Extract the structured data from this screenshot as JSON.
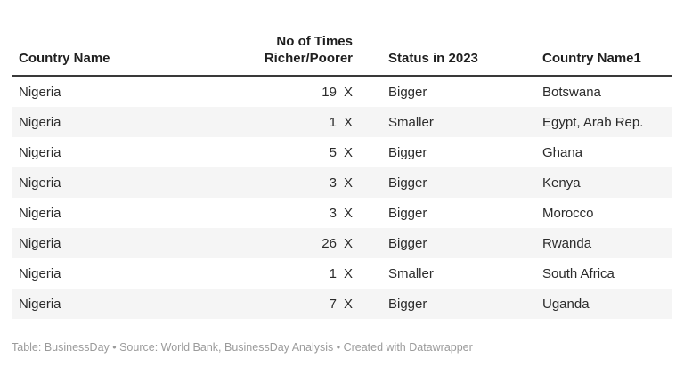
{
  "table": {
    "columns": [
      {
        "label": "Country Name"
      },
      {
        "label_line1": "No of Times",
        "label_line2": "Richer/Poorer"
      },
      {
        "label": "Status in 2023"
      },
      {
        "label": "Country Name1"
      }
    ],
    "rows": [
      {
        "country_name": "Nigeria",
        "times": "19",
        "unit": "X",
        "status": "Bigger",
        "country_name1": "Botswana"
      },
      {
        "country_name": "Nigeria",
        "times": "1",
        "unit": "X",
        "status": "Smaller",
        "country_name1": "Egypt, Arab Rep."
      },
      {
        "country_name": "Nigeria",
        "times": "5",
        "unit": "X",
        "status": "Bigger",
        "country_name1": "Ghana"
      },
      {
        "country_name": "Nigeria",
        "times": "3",
        "unit": "X",
        "status": "Bigger",
        "country_name1": "Kenya"
      },
      {
        "country_name": "Nigeria",
        "times": "3",
        "unit": "X",
        "status": "Bigger",
        "country_name1": "Morocco"
      },
      {
        "country_name": "Nigeria",
        "times": "26",
        "unit": "X",
        "status": "Bigger",
        "country_name1": "Rwanda"
      },
      {
        "country_name": "Nigeria",
        "times": "1",
        "unit": "X",
        "status": "Smaller",
        "country_name1": "South Africa"
      },
      {
        "country_name": "Nigeria",
        "times": "7",
        "unit": "X",
        "status": "Bigger",
        "country_name1": "Uganda"
      }
    ]
  },
  "footer": {
    "text": "Table: BusinessDay • Source: World Bank, BusinessDay Analysis • Created with Datawrapper"
  },
  "colors": {
    "header_rule": "#393939",
    "alt_row_background": "#f5f5f5",
    "body_text": "#2b2b2b",
    "header_text": "#1f1f1f",
    "footer_text": "#9b9b9b"
  },
  "chart_data": {
    "type": "table",
    "title": "",
    "columns": [
      "Country Name",
      "No of Times Richer/Poorer",
      "Status in 2023",
      "Country Name1"
    ],
    "rows": [
      [
        "Nigeria",
        "19 X",
        "Bigger",
        "Botswana"
      ],
      [
        "Nigeria",
        "1 X",
        "Smaller",
        "Egypt, Arab Rep."
      ],
      [
        "Nigeria",
        "5 X",
        "Bigger",
        "Ghana"
      ],
      [
        "Nigeria",
        "3 X",
        "Bigger",
        "Kenya"
      ],
      [
        "Nigeria",
        "3 X",
        "Bigger",
        "Morocco"
      ],
      [
        "Nigeria",
        "26 X",
        "Bigger",
        "Rwanda"
      ],
      [
        "Nigeria",
        "1 X",
        "Smaller",
        "South Africa"
      ],
      [
        "Nigeria",
        "7 X",
        "Bigger",
        "Uganda"
      ]
    ],
    "layout": {
      "striped_rows": true,
      "stripe_on": "even_data_rows",
      "header_rule": true
    },
    "footer": "Table: BusinessDay • Source: World Bank, BusinessDay Analysis • Created with Datawrapper"
  }
}
